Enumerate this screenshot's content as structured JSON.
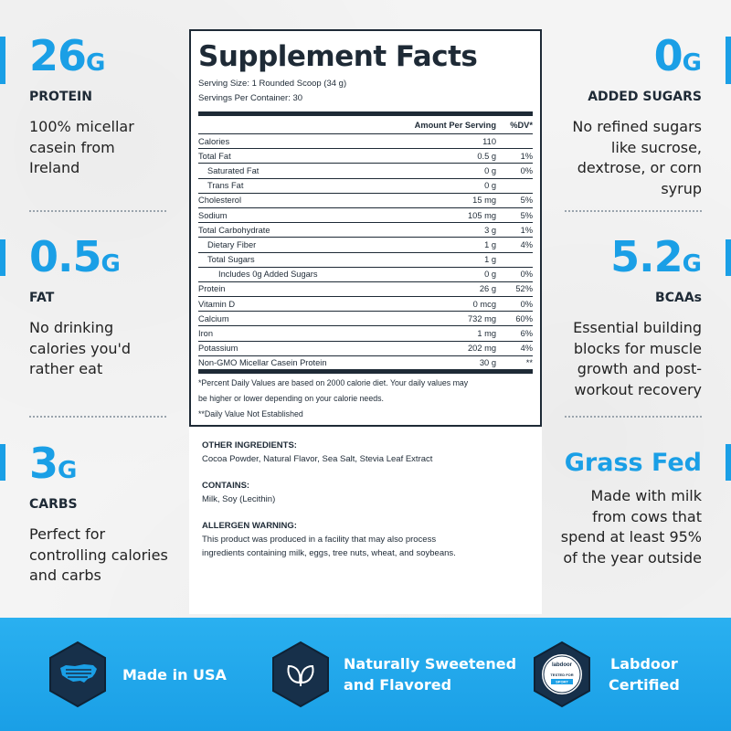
{
  "colors": {
    "accent": "#1a9fe6",
    "dark": "#1e2a36",
    "banner": "#1a9fe6"
  },
  "left_stats": [
    {
      "value": "26",
      "unit": "G",
      "heading": "PROTEIN",
      "desc_lines": [
        "100% micellar",
        "casein from",
        "Ireland"
      ]
    },
    {
      "value": "0.5",
      "unit": "G",
      "heading": "FAT",
      "desc_lines": [
        "No drinking",
        "calories you'd",
        "rather eat"
      ]
    },
    {
      "value": "3",
      "unit": "G",
      "heading": "CARBS",
      "desc_lines": [
        "Perfect for",
        "controlling calories",
        "and carbs"
      ]
    }
  ],
  "right_stats": [
    {
      "value": "0",
      "unit": "G",
      "heading": "ADDED SUGARS",
      "desc_lines": [
        "No refined sugars",
        "like sucrose,",
        "dextrose, or corn",
        "syrup"
      ]
    },
    {
      "value": "5.2",
      "unit": "G",
      "heading": "BCAAs",
      "desc_lines": [
        "Essential building",
        "blocks for muscle",
        "growth and post-",
        "workout recovery"
      ]
    },
    {
      "title": "Grass Fed",
      "desc_lines": [
        "Made with milk",
        "from cows that",
        "spend at least 95%",
        "of the year outside"
      ]
    }
  ],
  "facts": {
    "title": "Supplement Facts",
    "serving_size": "Serving Size: 1 Rounded Scoop (34 g)",
    "servings_per": "Servings Per Container: 30",
    "header_amount": "Amount Per Serving",
    "header_dv": "%DV*",
    "rows": [
      {
        "name": "Calories",
        "amount": "110",
        "dv": ""
      },
      {
        "name": "Total Fat",
        "amount": "0.5 g",
        "dv": "1%"
      },
      {
        "name": "Saturated Fat",
        "amount": "0 g",
        "dv": "0%"
      },
      {
        "name": "Trans Fat",
        "amount": "0 g",
        "dv": ""
      },
      {
        "name": "Cholesterol",
        "amount": "15 mg",
        "dv": "5%"
      },
      {
        "name": "Sodium",
        "amount": "105 mg",
        "dv": "5%"
      },
      {
        "name": "Total Carbohydrate",
        "amount": "3 g",
        "dv": "1%"
      },
      {
        "name": "Dietary Fiber",
        "amount": "1 g",
        "dv": "4%"
      },
      {
        "name": "Total Sugars",
        "amount": "1 g",
        "dv": ""
      },
      {
        "name": "Includes 0g Added Sugars",
        "amount": "0 g",
        "dv": "0%"
      },
      {
        "name": "Protein",
        "amount": "26 g",
        "dv": "52%"
      },
      {
        "name": "Vitamin D",
        "amount": "0 mcg",
        "dv": "0%"
      },
      {
        "name": "Calcium",
        "amount": "732 mg",
        "dv": "60%"
      },
      {
        "name": "Iron",
        "amount": "1 mg",
        "dv": "6%"
      },
      {
        "name": "Potassium",
        "amount": "202 mg",
        "dv": "4%"
      },
      {
        "name": "Non-GMO Micellar Casein Protein",
        "amount": "30 g",
        "dv": "**"
      }
    ],
    "footnote_1a": "*Percent Daily Values are based on 2000 calorie diet. Your daily values may",
    "footnote_1b": "be higher or lower depending on your calorie needs.",
    "footnote_2": "**Daily Value Not Established"
  },
  "ingredients": {
    "other_label": "OTHER INGREDIENTS:",
    "other_text": "Cocoa Powder, Natural Flavor, Sea Salt, Stevia Leaf Extract",
    "contains_label": "CONTAINS:",
    "contains_text": "Milk, Soy (Lecithin)",
    "allergen_label": "ALLERGEN WARNING:",
    "allergen_text_a": "This product was produced in a facility that may also process",
    "allergen_text_b": "ingredients containing milk, eggs, tree nuts, wheat, and soybeans."
  },
  "badges": [
    {
      "icon": "usa-map-icon",
      "line1": "Made in USA",
      "line2": ""
    },
    {
      "icon": "leaves-icon",
      "line1": "Naturally Sweetened",
      "line2": "and Flavored"
    },
    {
      "icon": "labdoor-seal-icon",
      "line1": "Labdoor",
      "line2": "Certified",
      "seal_top": "labdoor",
      "seal_mid": "TESTED FOR",
      "seal_bot": "SPORT"
    }
  ]
}
